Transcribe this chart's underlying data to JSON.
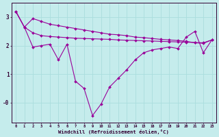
{
  "xlabel": "Windchill (Refroidissement éolien,°C)",
  "background_color": "#c5ecec",
  "line_color": "#990099",
  "grid_color": "#aadddd",
  "xlim": [
    -0.5,
    23.5
  ],
  "ylim": [
    -0.7,
    3.5
  ],
  "xticks": [
    0,
    1,
    2,
    3,
    4,
    5,
    6,
    7,
    8,
    9,
    10,
    11,
    12,
    13,
    14,
    15,
    16,
    17,
    18,
    19,
    20,
    21,
    22,
    23
  ],
  "yticks": [
    0,
    1,
    2,
    3
  ],
  "ytick_labels": [
    "-0",
    "1",
    "2",
    "3"
  ],
  "line1_y": [
    3.2,
    2.65,
    2.95,
    2.85,
    2.75,
    2.7,
    2.65,
    2.6,
    2.55,
    2.5,
    2.45,
    2.4,
    2.38,
    2.35,
    2.3,
    2.28,
    2.25,
    2.22,
    2.2,
    2.18,
    2.15,
    2.1,
    2.08,
    2.2
  ],
  "line2_y": [
    3.2,
    2.65,
    2.45,
    2.35,
    2.32,
    2.3,
    2.28,
    2.26,
    2.25,
    2.24,
    2.23,
    2.22,
    2.2,
    2.19,
    2.18,
    2.17,
    2.16,
    2.15,
    2.14,
    2.13,
    2.12,
    2.11,
    2.1,
    2.2
  ],
  "line3_y": [
    3.2,
    2.65,
    1.95,
    2.0,
    2.05,
    1.5,
    2.05,
    0.75,
    0.5,
    -0.45,
    -0.05,
    0.55,
    0.85,
    1.15,
    1.5,
    1.75,
    1.85,
    1.9,
    1.95,
    1.9,
    2.3,
    2.5,
    1.75,
    2.2
  ]
}
